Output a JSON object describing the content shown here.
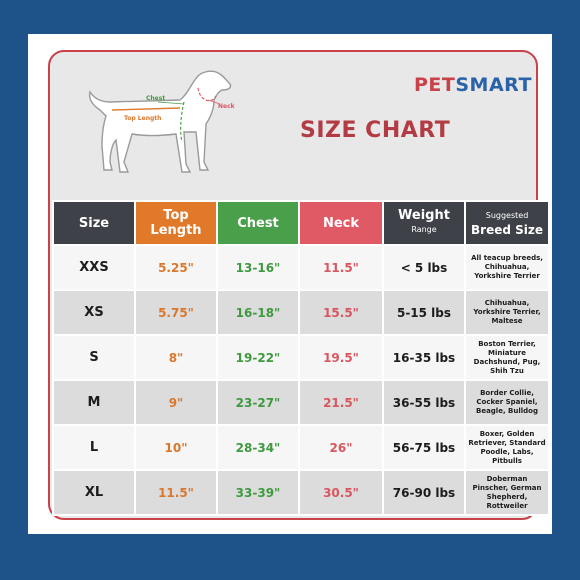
{
  "brand": {
    "part1": "PET",
    "part2": "SMART"
  },
  "title": "SIZE CHART",
  "diagram_labels": {
    "chest": "Chest",
    "neck": "Neck",
    "top_length": "Top Length"
  },
  "headers": {
    "size": "Size",
    "top_length": "Top Length",
    "chest": "Chest",
    "neck": "Neck",
    "weight": "Weight",
    "weight_sub": "Range",
    "breed_top": "Suggested",
    "breed": "Breed Size"
  },
  "rows": [
    {
      "size": "XXS",
      "top": "5.25\"",
      "chest": "13-16\"",
      "neck": "11.5\"",
      "weight": "< 5 lbs",
      "breed": "All teacup breeds, Chihuahua, Yorkshire Terrier"
    },
    {
      "size": "XS",
      "top": "5.75\"",
      "chest": "16-18\"",
      "neck": "15.5\"",
      "weight": "5-15 lbs",
      "breed": "Chihuahua, Yorkshire Terrier, Maltese"
    },
    {
      "size": "S",
      "top": "8\"",
      "chest": "19-22\"",
      "neck": "19.5\"",
      "weight": "16-35 lbs",
      "breed": "Boston Terrier, Miniature Dachshund, Pug, Shih Tzu"
    },
    {
      "size": "M",
      "top": "9\"",
      "chest": "23-27\"",
      "neck": "21.5\"",
      "weight": "36-55 lbs",
      "breed": "Border Collie, Cocker Spaniel, Beagle, Bulldog"
    },
    {
      "size": "L",
      "top": "10\"",
      "chest": "28-34\"",
      "neck": "26\"",
      "weight": "56-75 lbs",
      "breed": "Boxer, Golden Retriever, Standard Poodle, Labs, Pitbulls"
    },
    {
      "size": "XL",
      "top": "11.5\"",
      "chest": "33-39\"",
      "neck": "30.5\"",
      "weight": "76-90 lbs",
      "breed": "Doberman Pinscher, German Shepherd, Rottweiler"
    }
  ],
  "colors": {
    "background": "#1e5389",
    "frame_border": "#c9424a",
    "top_length": "#e07a2a",
    "chest": "#4aa04a",
    "neck": "#e05a66",
    "header_dark": "#3e4147",
    "title": "#b23b44",
    "logo_blue": "#2a62a8"
  }
}
